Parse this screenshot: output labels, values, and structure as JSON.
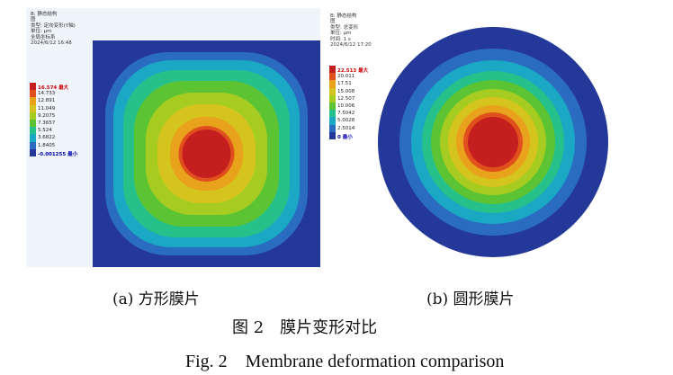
{
  "figure": {
    "caption_cn": "图 2　膜片变形对比",
    "caption_en": "Fig. 2　Membrane deformation comparison"
  },
  "panels": [
    {
      "caption": "(a) 方形膜片",
      "info": [
        "B: 静态结构",
        "图",
        "类型: 定向变形(Y轴)",
        "单位: μm",
        "全局坐标系",
        "2024/6/12 16:48"
      ],
      "legend": [
        {
          "value": "16.574 最大",
          "color": "#c41e1e"
        },
        {
          "value": "14.733",
          "color": "#e0501c"
        },
        {
          "value": "12.891",
          "color": "#e8a21c"
        },
        {
          "value": "11.049",
          "color": "#d6c41e"
        },
        {
          "value": "9.2075",
          "color": "#a6cc22"
        },
        {
          "value": "7.3657",
          "color": "#5cc432"
        },
        {
          "value": "5.524",
          "color": "#26c08a"
        },
        {
          "value": "3.6822",
          "color": "#1aa8c4"
        },
        {
          "value": "1.8405",
          "color": "#2a6cc0"
        },
        {
          "value": "-0.001255 最小",
          "color": "#24389a"
        }
      ]
    },
    {
      "caption": "(b) 圆形膜片",
      "info": [
        "B: 静态结构",
        "图",
        "类型: 总变形",
        "单位: μm",
        "时间: 1 s",
        "2024/6/12 17:20"
      ],
      "legend": [
        {
          "value": "22.513 最大",
          "color": "#c41e1e"
        },
        {
          "value": "20.011",
          "color": "#e0501c"
        },
        {
          "value": "17.51",
          "color": "#e8a21c"
        },
        {
          "value": "15.008",
          "color": "#d6c41e"
        },
        {
          "value": "12.507",
          "color": "#a6cc22"
        },
        {
          "value": "10.006",
          "color": "#5cc432"
        },
        {
          "value": "7.5042",
          "color": "#26c08a"
        },
        {
          "value": "5.0028",
          "color": "#1aa8c4"
        },
        {
          "value": "2.5014",
          "color": "#2a6cc0"
        },
        {
          "value": "0 最小",
          "color": "#24389a"
        }
      ]
    }
  ]
}
